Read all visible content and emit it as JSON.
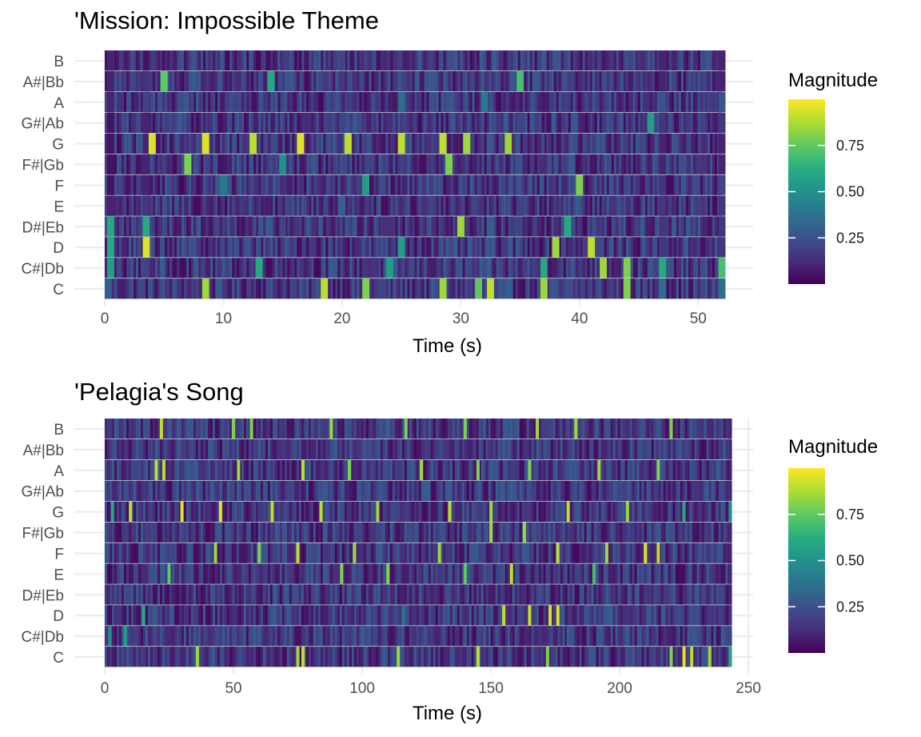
{
  "chart_data": [
    {
      "type": "heatmap",
      "title": "'Mission: Impossible Theme",
      "xlabel": "Time (s)",
      "ylabel": "",
      "xlim": [
        0,
        52
      ],
      "x_ticks": [
        0,
        10,
        20,
        30,
        40,
        50
      ],
      "x_tick_labels": [
        "0",
        "10",
        "20",
        "30",
        "40",
        "50"
      ],
      "duration": 52,
      "pitches": [
        "C",
        "C#|Db",
        "D",
        "D#|Eb",
        "E",
        "F",
        "F#|Gb",
        "G",
        "G#|Ab",
        "A",
        "A#|Bb",
        "B"
      ],
      "colorscale": "viridis",
      "legend": {
        "title": "Magnitude",
        "ticks": [
          0.25,
          0.5,
          0.75
        ],
        "tick_labels": [
          "0.25",
          "0.50",
          "0.75"
        ],
        "range": [
          0,
          1
        ],
        "position": "right"
      },
      "grid": true,
      "rows": {
        "C": [
          [
            0.3,
            0.3
          ],
          [
            8.5,
            0.85
          ],
          [
            18.5,
            0.9
          ],
          [
            22,
            0.8
          ],
          [
            28.5,
            0.85
          ],
          [
            31.5,
            0.75
          ],
          [
            32.5,
            0.9
          ],
          [
            37,
            0.85
          ],
          [
            44,
            0.8
          ],
          [
            47,
            0.35
          ],
          [
            52,
            0.35
          ]
        ],
        "C#|Db": [
          [
            0.5,
            0.55
          ],
          [
            3.5,
            0.2
          ],
          [
            13,
            0.6
          ],
          [
            24,
            0.55
          ],
          [
            37,
            0.6
          ],
          [
            42,
            0.85
          ],
          [
            44,
            0.8
          ],
          [
            47,
            0.6
          ],
          [
            52,
            0.7
          ]
        ],
        "D": [
          [
            0.5,
            0.6
          ],
          [
            3.5,
            0.95
          ],
          [
            12,
            0.25
          ],
          [
            25,
            0.55
          ],
          [
            38,
            0.85
          ],
          [
            41,
            0.9
          ],
          [
            47,
            0.15
          ],
          [
            52,
            0.15
          ]
        ],
        "D#|Eb": [
          [
            0.5,
            0.6
          ],
          [
            3.5,
            0.6
          ],
          [
            15,
            0.2
          ],
          [
            30,
            0.85
          ],
          [
            39,
            0.6
          ],
          [
            47,
            0.15
          ],
          [
            52,
            0.15
          ]
        ],
        "E": [
          [
            0.5,
            0.1
          ],
          [
            3.5,
            0.15
          ],
          [
            20,
            0.3
          ],
          [
            35,
            0.2
          ],
          [
            47,
            0.15
          ],
          [
            52,
            0.15
          ]
        ],
        "F": [
          [
            0.5,
            0.05
          ],
          [
            3.5,
            0.1
          ],
          [
            10,
            0.4
          ],
          [
            22,
            0.55
          ],
          [
            40,
            0.8
          ],
          [
            47,
            0.15
          ],
          [
            52,
            0.2
          ]
        ],
        "F#|Gb": [
          [
            0.5,
            0.05
          ],
          [
            3.5,
            0.1
          ],
          [
            7,
            0.8
          ],
          [
            15,
            0.5
          ],
          [
            29,
            0.8
          ],
          [
            47,
            0.1
          ],
          [
            52,
            0.1
          ]
        ],
        "G": [
          [
            0.5,
            0.05
          ],
          [
            3.5,
            0.1
          ],
          [
            4,
            0.95
          ],
          [
            8.5,
            0.95
          ],
          [
            12.5,
            0.9
          ],
          [
            16.5,
            0.95
          ],
          [
            20.5,
            0.9
          ],
          [
            25,
            0.9
          ],
          [
            28.5,
            0.9
          ],
          [
            30.5,
            0.85
          ],
          [
            34,
            0.85
          ],
          [
            47,
            0.1
          ],
          [
            52,
            0.1
          ]
        ],
        "G#|Ab": [
          [
            0.5,
            0.05
          ],
          [
            3.5,
            0.1
          ],
          [
            20,
            0.2
          ],
          [
            35,
            0.2
          ],
          [
            46,
            0.55
          ],
          [
            47,
            0.15
          ],
          [
            52,
            0.15
          ]
        ],
        "A": [
          [
            0.5,
            0.1
          ],
          [
            3.5,
            0.2
          ],
          [
            25,
            0.35
          ],
          [
            32,
            0.4
          ],
          [
            47,
            0.25
          ],
          [
            52,
            0.25
          ]
        ],
        "A#|Bb": [
          [
            0.5,
            0.1
          ],
          [
            3.5,
            0.15
          ],
          [
            5,
            0.75
          ],
          [
            14,
            0.6
          ],
          [
            35,
            0.7
          ],
          [
            47,
            0.1
          ],
          [
            52,
            0.1
          ]
        ],
        "B": [
          [
            0.5,
            0.1
          ],
          [
            3.5,
            0.05
          ],
          [
            20,
            0.2
          ],
          [
            38,
            0.25
          ],
          [
            47,
            0.1
          ],
          [
            52,
            0.1
          ]
        ]
      }
    },
    {
      "type": "heatmap",
      "title": "'Pelagia's Song",
      "xlabel": "Time (s)",
      "ylabel": "",
      "xlim": [
        0,
        245
      ],
      "x_ticks": [
        0,
        50,
        100,
        150,
        200,
        250
      ],
      "x_tick_labels": [
        "0",
        "50",
        "100",
        "150",
        "200",
        "250"
      ],
      "duration": 243,
      "pitches": [
        "C",
        "C#|Db",
        "D",
        "D#|Eb",
        "E",
        "F",
        "F#|Gb",
        "G",
        "G#|Ab",
        "A",
        "A#|Bb",
        "B"
      ],
      "colorscale": "viridis",
      "legend": {
        "title": "Magnitude",
        "ticks": [
          0.25,
          0.5,
          0.75
        ],
        "tick_labels": [
          "0.25",
          "0.50",
          "0.75"
        ],
        "range": [
          0,
          1
        ],
        "position": "right"
      },
      "grid": true,
      "rows": {
        "C": [
          [
            36,
            0.85
          ],
          [
            75,
            0.85
          ],
          [
            77,
            0.9
          ],
          [
            114,
            0.85
          ],
          [
            145,
            0.9
          ],
          [
            172,
            0.8
          ],
          [
            220,
            0.8
          ],
          [
            225,
            0.95
          ],
          [
            228,
            0.9
          ],
          [
            235,
            0.85
          ],
          [
            243,
            0.6
          ]
        ],
        "C#|Db": [
          [
            2,
            0.5
          ],
          [
            8,
            0.55
          ],
          [
            100,
            0.3
          ],
          [
            180,
            0.3
          ],
          [
            243,
            0.2
          ]
        ],
        "D": [
          [
            15,
            0.6
          ],
          [
            116,
            0.4
          ],
          [
            155,
            0.9
          ],
          [
            165,
            0.9
          ],
          [
            173,
            0.95
          ],
          [
            176,
            0.95
          ],
          [
            243,
            0.15
          ]
        ],
        "D#|Eb": [
          [
            50,
            0.2
          ],
          [
            120,
            0.2
          ],
          [
            200,
            0.2
          ],
          [
            243,
            0.1
          ]
        ],
        "E": [
          [
            25,
            0.75
          ],
          [
            92,
            0.8
          ],
          [
            110,
            0.8
          ],
          [
            140,
            0.75
          ],
          [
            158,
            0.9
          ],
          [
            190,
            0.7
          ],
          [
            243,
            0.1
          ]
        ],
        "F": [
          [
            43,
            0.85
          ],
          [
            60,
            0.8
          ],
          [
            75,
            0.9
          ],
          [
            97,
            0.85
          ],
          [
            130,
            0.85
          ],
          [
            176,
            0.9
          ],
          [
            195,
            0.85
          ],
          [
            210,
            0.95
          ],
          [
            215,
            0.9
          ],
          [
            243,
            0.1
          ]
        ],
        "F#|Gb": [
          [
            150,
            0.85
          ],
          [
            163,
            0.85
          ],
          [
            243,
            0.1
          ]
        ],
        "G": [
          [
            3,
            0.6
          ],
          [
            10,
            0.9
          ],
          [
            30,
            0.95
          ],
          [
            45,
            0.95
          ],
          [
            65,
            0.9
          ],
          [
            84,
            0.9
          ],
          [
            106,
            0.85
          ],
          [
            134,
            0.9
          ],
          [
            150,
            0.85
          ],
          [
            180,
            0.9
          ],
          [
            203,
            0.85
          ],
          [
            225,
            0.6
          ],
          [
            243,
            0.5
          ]
        ],
        "G#|Ab": [
          [
            50,
            0.2
          ],
          [
            130,
            0.2
          ],
          [
            200,
            0.2
          ],
          [
            243,
            0.1
          ]
        ],
        "A": [
          [
            20,
            0.9
          ],
          [
            23,
            0.9
          ],
          [
            52,
            0.85
          ],
          [
            77,
            0.9
          ],
          [
            95,
            0.8
          ],
          [
            123,
            0.85
          ],
          [
            145,
            0.8
          ],
          [
            165,
            0.8
          ],
          [
            192,
            0.85
          ],
          [
            215,
            0.8
          ],
          [
            243,
            0.1
          ]
        ],
        "A#|Bb": [
          [
            50,
            0.2
          ],
          [
            125,
            0.2
          ],
          [
            200,
            0.2
          ],
          [
            243,
            0.1
          ]
        ],
        "B": [
          [
            22,
            0.9
          ],
          [
            50,
            0.8
          ],
          [
            57,
            0.8
          ],
          [
            88,
            0.85
          ],
          [
            117,
            0.8
          ],
          [
            140,
            0.8
          ],
          [
            168,
            0.85
          ],
          [
            183,
            0.85
          ],
          [
            220,
            0.8
          ],
          [
            243,
            0.1
          ]
        ]
      }
    }
  ]
}
